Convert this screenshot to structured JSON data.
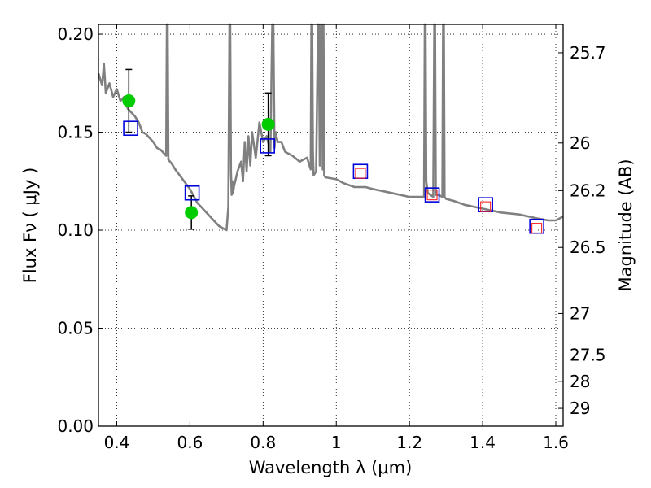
{
  "chart_data": {
    "type": "scatter",
    "title": "",
    "xlabel": "Wavelength  λ (μm)",
    "ylabel": "Flux  Fν  ( μJy )",
    "y2label": "Magnitude (AB)",
    "xlim": [
      0.35,
      1.62
    ],
    "ylim": [
      0.0,
      0.205
    ],
    "grid": true,
    "x_ticks": [
      0.4,
      0.6,
      0.8,
      1.0,
      1.2,
      1.4,
      1.6
    ],
    "x_tick_labels": [
      "0.4",
      "0.6",
      "0.8",
      "1",
      "1.2",
      "1.4",
      "1.6"
    ],
    "y_ticks": [
      0.0,
      0.05,
      0.1,
      0.15,
      0.2
    ],
    "y_tick_labels": [
      "0.00",
      "0.05",
      "0.10",
      "0.15",
      "0.20"
    ],
    "y2_ticks": [
      {
        "label": "25.7",
        "flux": 0.1905
      },
      {
        "label": "26",
        "flux": 0.1445
      },
      {
        "label": "26.2",
        "flux": 0.1202
      },
      {
        "label": "26.5",
        "flux": 0.0912
      },
      {
        "label": "27",
        "flux": 0.0575
      },
      {
        "label": "27.5",
        "flux": 0.0363
      },
      {
        "label": "28",
        "flux": 0.0229
      },
      {
        "label": "29",
        "flux": 0.0091
      }
    ],
    "series": [
      {
        "type": "line",
        "color": "#808080",
        "x": [
          0.35,
          0.36,
          0.365,
          0.37,
          0.38,
          0.39,
          0.4,
          0.41,
          0.42,
          0.43,
          0.44,
          0.45,
          0.46,
          0.47,
          0.48,
          0.49,
          0.5,
          0.51,
          0.52,
          0.53,
          0.535,
          0.537,
          0.539,
          0.541,
          0.55,
          0.56,
          0.58,
          0.6,
          0.62,
          0.64,
          0.66,
          0.68,
          0.7,
          0.705,
          0.708,
          0.71,
          0.712,
          0.714,
          0.716,
          0.718,
          0.72,
          0.73,
          0.74,
          0.745,
          0.75,
          0.755,
          0.76,
          0.765,
          0.77,
          0.78,
          0.79,
          0.8,
          0.81,
          0.82,
          0.825,
          0.828,
          0.831,
          0.834,
          0.84,
          0.85,
          0.86,
          0.88,
          0.9,
          0.92,
          0.93,
          0.932,
          0.934,
          0.936,
          0.938,
          0.945,
          0.95,
          0.952,
          0.955,
          0.958,
          0.96,
          0.963,
          0.965,
          0.967,
          0.97,
          1.0,
          1.02,
          1.05,
          1.08,
          1.1,
          1.15,
          1.2,
          1.24,
          1.242,
          1.244,
          1.246,
          1.25,
          1.265,
          1.268,
          1.27,
          1.272,
          1.28,
          1.29,
          1.292,
          1.294,
          1.296,
          1.3,
          1.32,
          1.35,
          1.4,
          1.45,
          1.5,
          1.55,
          1.58,
          1.6,
          1.62
        ],
        "y": [
          0.18,
          0.174,
          0.185,
          0.17,
          0.175,
          0.168,
          0.172,
          0.166,
          0.168,
          0.162,
          0.16,
          0.158,
          0.155,
          0.15,
          0.149,
          0.147,
          0.145,
          0.142,
          0.141,
          0.139,
          0.138,
          0.205,
          0.205,
          0.136,
          0.134,
          0.131,
          0.126,
          0.121,
          0.114,
          0.11,
          0.106,
          0.102,
          0.1,
          0.112,
          0.205,
          0.205,
          0.13,
          0.118,
          0.125,
          0.119,
          0.122,
          0.13,
          0.135,
          0.125,
          0.145,
          0.13,
          0.148,
          0.133,
          0.15,
          0.137,
          0.155,
          0.145,
          0.148,
          0.14,
          0.205,
          0.205,
          0.142,
          0.15,
          0.145,
          0.145,
          0.14,
          0.138,
          0.135,
          0.137,
          0.131,
          0.205,
          0.205,
          0.14,
          0.128,
          0.13,
          0.205,
          0.205,
          0.133,
          0.205,
          0.205,
          0.131,
          0.205,
          0.128,
          0.127,
          0.126,
          0.124,
          0.122,
          0.122,
          0.121,
          0.119,
          0.117,
          0.117,
          0.205,
          0.205,
          0.125,
          0.119,
          0.117,
          0.205,
          0.205,
          0.118,
          0.118,
          0.117,
          0.205,
          0.205,
          0.117,
          0.116,
          0.115,
          0.113,
          0.111,
          0.109,
          0.108,
          0.106,
          0.105,
          0.105,
          0.107
        ]
      },
      {
        "type": "scatter",
        "marker": "circle",
        "color": "#00cc00",
        "x": [
          0.433,
          0.604,
          0.814
        ],
        "y": [
          0.166,
          0.109,
          0.154
        ],
        "yerr": [
          0.016,
          0.0085,
          0.016
        ]
      },
      {
        "type": "scatter",
        "marker": "square-open",
        "color": "#0000dd",
        "x": [
          0.438,
          0.606,
          0.812,
          1.066,
          1.262,
          1.408,
          1.548
        ],
        "y": [
          0.152,
          0.119,
          0.143,
          0.13,
          0.118,
          0.113,
          0.102
        ]
      },
      {
        "type": "scatter",
        "marker": "square-open-small",
        "color": "#ff2222",
        "x": [
          1.066,
          1.262,
          1.408,
          1.548
        ],
        "y": [
          0.129,
          0.118,
          0.112,
          0.101
        ]
      }
    ]
  }
}
